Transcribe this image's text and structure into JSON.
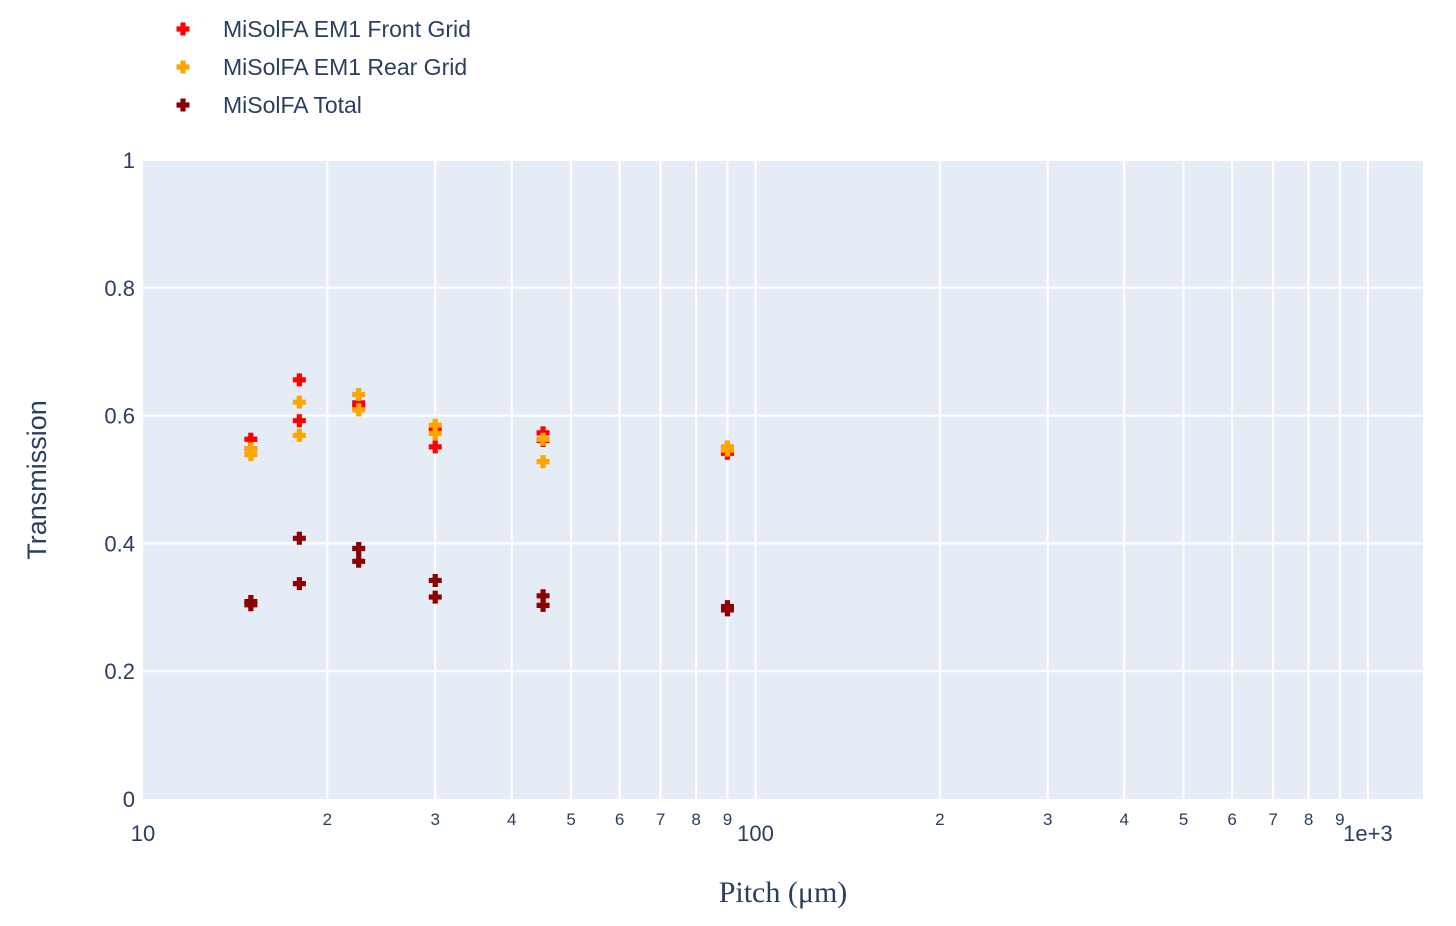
{
  "chart_data": {
    "type": "scatter",
    "xlabel": "Pitch (μm)",
    "ylabel": "Transmission",
    "x_scale": "log",
    "xlim": [
      10,
      1230
    ],
    "ylim": [
      0,
      1
    ],
    "grid": true,
    "legend_position": "top-left",
    "marker": "cross",
    "y_ticks": [
      {
        "value": 0,
        "label": "0"
      },
      {
        "value": 0.2,
        "label": "0.2"
      },
      {
        "value": 0.4,
        "label": "0.4"
      },
      {
        "value": 0.6,
        "label": "0.6"
      },
      {
        "value": 0.8,
        "label": "0.8"
      },
      {
        "value": 1,
        "label": "1"
      }
    ],
    "x_major_ticks": [
      {
        "value": 10,
        "label": "10"
      },
      {
        "value": 100,
        "label": "100"
      },
      {
        "value": 1000,
        "label": "1e+3"
      }
    ],
    "x_minor_ticks": [
      {
        "value": 20,
        "label": "2"
      },
      {
        "value": 30,
        "label": "3"
      },
      {
        "value": 40,
        "label": "4"
      },
      {
        "value": 50,
        "label": "5"
      },
      {
        "value": 60,
        "label": "6"
      },
      {
        "value": 70,
        "label": "7"
      },
      {
        "value": 80,
        "label": "8"
      },
      {
        "value": 90,
        "label": "9"
      },
      {
        "value": 200,
        "label": "2"
      },
      {
        "value": 300,
        "label": "3"
      },
      {
        "value": 400,
        "label": "4"
      },
      {
        "value": 500,
        "label": "5"
      },
      {
        "value": 600,
        "label": "6"
      },
      {
        "value": 700,
        "label": "7"
      },
      {
        "value": 800,
        "label": "8"
      },
      {
        "value": 900,
        "label": "9"
      }
    ],
    "series": [
      {
        "name": "MiSolFA EM1 Front Grid",
        "color": "#ff0000",
        "x": [
          15,
          15,
          18,
          18,
          22.5,
          22.5,
          30,
          30,
          45,
          45,
          90,
          90
        ],
        "y": [
          0.563,
          0.548,
          0.656,
          0.592,
          0.62,
          0.614,
          0.58,
          0.551,
          0.573,
          0.561,
          0.549,
          0.541
        ]
      },
      {
        "name": "MiSolFA EM1 Rear Grid",
        "color": "#ffa500",
        "x": [
          15,
          15,
          18,
          18,
          22.5,
          22.5,
          30,
          30,
          45,
          45,
          90,
          90
        ],
        "y": [
          0.548,
          0.539,
          0.621,
          0.569,
          0.633,
          0.609,
          0.585,
          0.572,
          0.563,
          0.528,
          0.551,
          0.546
        ]
      },
      {
        "name": "MiSolFA Total",
        "color": "#8b0000",
        "x": [
          15,
          15,
          18,
          18,
          22.5,
          22.5,
          30,
          30,
          45,
          45,
          90,
          90
        ],
        "y": [
          0.309,
          0.304,
          0.408,
          0.337,
          0.392,
          0.372,
          0.342,
          0.316,
          0.318,
          0.303,
          0.301,
          0.296
        ]
      }
    ]
  }
}
